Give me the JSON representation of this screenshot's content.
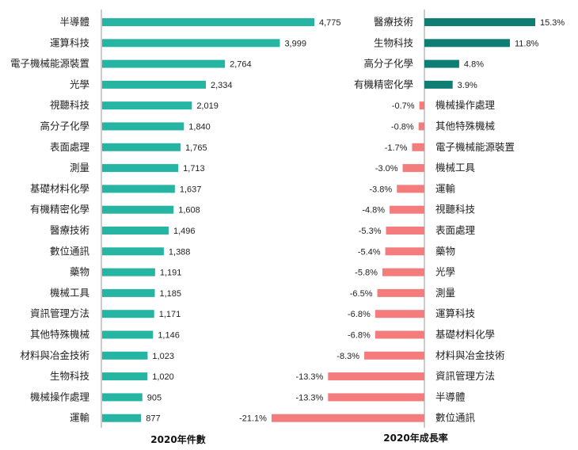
{
  "colors": {
    "teal": "#26B5A3",
    "dark_teal": "#0E7E74",
    "salmon": "#F47C7C",
    "axis": "#999999"
  },
  "chart_data": [
    {
      "type": "bar",
      "orientation": "horizontal",
      "xlabel": "2020年件數",
      "categories": [
        "半導體",
        "運算科技",
        "電子機械能源裝置",
        "光學",
        "視聽科技",
        "高分子化學",
        "表面處理",
        "測量",
        "基礎材料化學",
        "有機精密化學",
        "醫療技術",
        "數位通訊",
        "藥物",
        "機械工具",
        "資訊管理方法",
        "其他特殊機械",
        "材料與冶金技術",
        "生物科技",
        "機械操作處理",
        "運輸"
      ],
      "values": [
        4775,
        3999,
        2764,
        2334,
        2019,
        1840,
        1765,
        1713,
        1637,
        1608,
        1496,
        1388,
        1191,
        1185,
        1171,
        1146,
        1023,
        1020,
        905,
        877
      ],
      "value_labels": [
        "4,775",
        "3,999",
        "2,764",
        "2,334",
        "2,019",
        "1,840",
        "1,765",
        "1,713",
        "1,637",
        "1,608",
        "1,496",
        "1,388",
        "1,191",
        "1,185",
        "1,171",
        "1,146",
        "1,023",
        "1,020",
        "905",
        "877"
      ],
      "color": "#26B5A3"
    },
    {
      "type": "bar",
      "orientation": "horizontal",
      "xlabel": "2020年成長率",
      "categories": [
        "醫療技術",
        "生物科技",
        "高分子化學",
        "有機精密化學",
        "機械操作處理",
        "其他特殊機械",
        "電子機械能源裝置",
        "機械工具",
        "運輸",
        "視聽科技",
        "表面處理",
        "藥物",
        "光學",
        "測量",
        "運算科技",
        "基礎材料化學",
        "材料與冶金技術",
        "資訊管理方法",
        "半導體",
        "數位通訊"
      ],
      "values": [
        15.3,
        11.8,
        4.8,
        3.9,
        -0.7,
        -0.8,
        -1.7,
        -3.0,
        -3.8,
        -4.8,
        -5.3,
        -5.4,
        -5.8,
        -6.5,
        -6.8,
        -6.8,
        -8.3,
        -13.3,
        -13.3,
        -21.1
      ],
      "value_labels": [
        "15.3%",
        "11.8%",
        "4.8%",
        "3.9%",
        "-0.7%",
        "-0.8%",
        "-1.7%",
        "-3.0%",
        "-3.8%",
        "-4.8%",
        "-5.3%",
        "-5.4%",
        "-5.8%",
        "-6.5%",
        "-6.8%",
        "-6.8%",
        "-8.3%",
        "-13.3%",
        "-13.3%",
        "-21.1%"
      ],
      "positive_color": "#0E7E74",
      "negative_color": "#F47C7C"
    }
  ]
}
